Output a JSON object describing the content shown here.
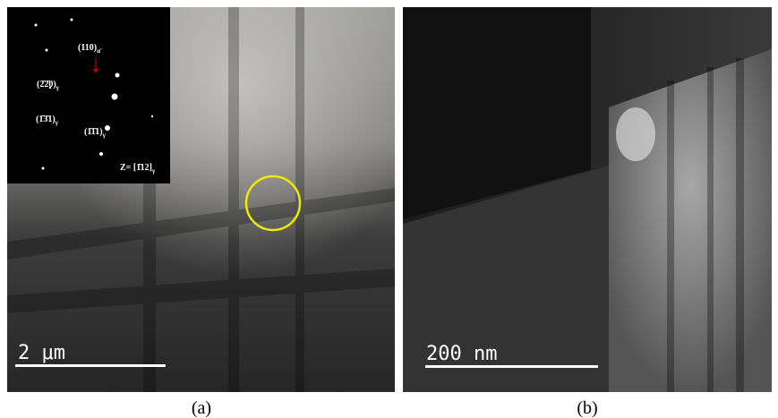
{
  "panels": [
    {
      "caption": "(a)",
      "scale_bar": "2 μm",
      "diffraction": {
        "spots": [
          {
            "text": "(110)",
            "sub": "α'"
          },
          {
            "text": "(2̄2̄0)",
            "sub": "γ"
          },
          {
            "text": "(1̄3̄1)",
            "sub": "γ"
          },
          {
            "text": "(1̄1̄1)",
            "sub": "γ"
          }
        ],
        "zone": {
          "text": "Z= [1̄12]",
          "sub": "γ"
        }
      }
    },
    {
      "caption": "(b)",
      "scale_bar": "200 nm"
    }
  ]
}
